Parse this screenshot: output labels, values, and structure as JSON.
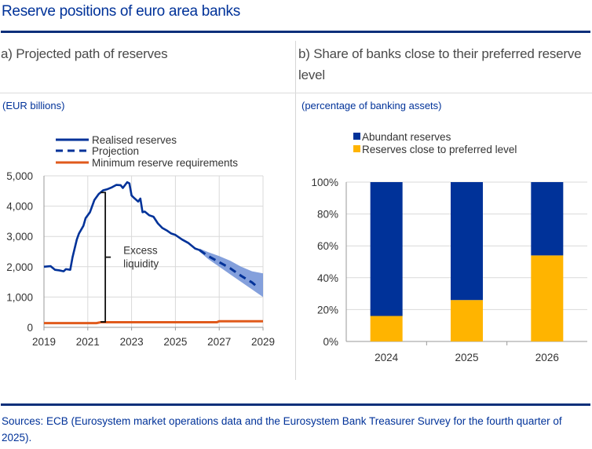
{
  "title": "Reserve positions of euro area banks",
  "panels": {
    "a": {
      "title": "a) Projected path of reserves",
      "unit": "(EUR billions)"
    },
    "b": {
      "title": "b) Share of banks close to their preferred reserve level",
      "unit": "(percentage of banking assets)"
    }
  },
  "sources": "Sources: ECB (Eurosystem market operations data and the Eurosystem Bank Treasurer Survey for the fourth quarter of 2025).",
  "colors": {
    "realised": "#003299",
    "projection": "#003299",
    "band": "#6f8fd6",
    "minimum": "#e05a1c",
    "abundant": "#003299",
    "close": "#ffb400"
  },
  "chart_data": [
    {
      "type": "line",
      "title": "a) Projected path of reserves",
      "ylabel": "EUR billions",
      "xlim": [
        2019,
        2029
      ],
      "ylim": [
        0,
        5000
      ],
      "grid": true,
      "x_ticks": [
        "2019",
        "2021",
        "2023",
        "2025",
        "2027",
        "2029"
      ],
      "y_ticks": [
        "0",
        "1,000",
        "2,000",
        "3,000",
        "4,000",
        "5,000"
      ],
      "legend": {
        "position": "top",
        "entries": [
          "Realised reserves",
          "Projection",
          "Minimum reserve requirements"
        ]
      },
      "annotation": {
        "text_line1": "Excess",
        "text_line2": "liquidity",
        "x": 2021.8,
        "y_from": 180,
        "y_to": 4450
      },
      "series": [
        {
          "name": "Realised reserves",
          "style": "solid",
          "x": [
            2019.0,
            2019.3,
            2019.5,
            2019.7,
            2019.9,
            2020.0,
            2020.2,
            2020.3,
            2020.5,
            2020.6,
            2020.8,
            2020.9,
            2021.1,
            2021.3,
            2021.5,
            2021.7,
            2021.9,
            2022.1,
            2022.3,
            2022.5,
            2022.6,
            2022.8,
            2022.9,
            2023.0,
            2023.1,
            2023.3,
            2023.4,
            2023.5,
            2023.6,
            2023.8,
            2024.0,
            2024.2,
            2024.4,
            2024.6,
            2024.8,
            2025.0,
            2025.3,
            2025.6,
            2025.9,
            2026.1
          ],
          "values": [
            2000,
            2020,
            1900,
            1880,
            1850,
            1920,
            1900,
            2300,
            2900,
            3100,
            3350,
            3600,
            3800,
            4200,
            4400,
            4520,
            4560,
            4620,
            4700,
            4690,
            4600,
            4790,
            4750,
            4350,
            4280,
            4150,
            4250,
            3800,
            3820,
            3700,
            3650,
            3430,
            3280,
            3200,
            3100,
            3050,
            2900,
            2780,
            2600,
            2550
          ]
        },
        {
          "name": "Projection",
          "style": "dashed",
          "x": [
            2026.1,
            2026.5,
            2027.0,
            2027.5,
            2028.0,
            2028.5,
            2028.8
          ],
          "values": [
            2550,
            2350,
            2150,
            1950,
            1700,
            1480,
            1300
          ]
        },
        {
          "name": "Projection range",
          "style": "band",
          "x": [
            2026.1,
            2026.5,
            2027.0,
            2027.5,
            2028.0,
            2028.5,
            2029.0
          ],
          "upper": [
            2600,
            2480,
            2350,
            2200,
            2000,
            1850,
            1780
          ],
          "lower": [
            2500,
            2250,
            2000,
            1750,
            1500,
            1250,
            1000
          ]
        },
        {
          "name": "Minimum reserve requirements",
          "style": "solid",
          "x": [
            2019.0,
            2021.4,
            2021.6,
            2026.9,
            2027.0,
            2029.0
          ],
          "values": [
            140,
            140,
            170,
            170,
            200,
            200
          ]
        }
      ]
    },
    {
      "type": "bar",
      "stacked": true,
      "title": "b) Share of banks close to their preferred reserve level",
      "ylabel": "percentage of banking assets",
      "ylim": [
        0,
        100
      ],
      "grid": true,
      "categories": [
        "2024",
        "2025",
        "2026"
      ],
      "y_ticks": [
        "0%",
        "20%",
        "40%",
        "60%",
        "80%",
        "100%"
      ],
      "legend": {
        "position": "top-left",
        "entries": [
          "Abundant reserves",
          "Reserves close to preferred level"
        ]
      },
      "series": [
        {
          "name": "Reserves close to preferred level",
          "values": [
            16,
            26,
            54
          ]
        },
        {
          "name": "Abundant reserves",
          "values": [
            84,
            74,
            46
          ]
        }
      ]
    }
  ]
}
